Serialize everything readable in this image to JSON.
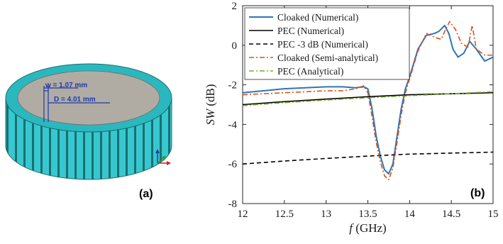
{
  "panel_a": {
    "label": "(a)",
    "dimension_w": "w = 1.07 mm",
    "dimension_d": "D = 4.01 mm",
    "colors": {
      "cylinder_body": "#37c8cf",
      "cylinder_stripe": "#1a6f73",
      "top_disk": "#b0aca4",
      "top_ring": "#2ab8be"
    },
    "triad_icon": "coordinate-triad-icon"
  },
  "panel_b": {
    "label": "(b)",
    "chart_data": {
      "type": "line",
      "xlabel_var": "f",
      "xlabel_unit": " (GHz)",
      "ylabel_var": "SW",
      "ylabel_unit": " (dB)",
      "xlim": [
        12,
        15
      ],
      "ylim": [
        -8,
        2
      ],
      "xticks": [
        "12",
        "12.5",
        "13",
        "13.5",
        "14",
        "14.5",
        "15"
      ],
      "xtick_values": [
        12,
        12.5,
        13,
        13.5,
        14,
        14.5,
        15
      ],
      "yticks": [
        "2",
        "0",
        "-2",
        "-4",
        "-6",
        "-8"
      ],
      "ytick_values": [
        2,
        0,
        -2,
        -4,
        -6,
        -8
      ],
      "legend_placement": "top-left",
      "series": [
        {
          "name": "Cloaked (Numerical)",
          "color": "#2e75b6",
          "dash": "solid",
          "x": [
            12.0,
            12.25,
            12.5,
            12.75,
            13.0,
            13.2,
            13.35,
            13.45,
            13.5,
            13.55,
            13.6,
            13.65,
            13.7,
            13.75,
            13.8,
            13.85,
            13.9,
            13.95,
            14.0,
            14.05,
            14.1,
            14.2,
            14.3,
            14.35,
            14.42,
            14.47,
            14.52,
            14.58,
            14.65,
            14.72,
            14.8,
            14.9,
            14.95,
            15.0
          ],
          "y": [
            -2.4,
            -2.3,
            -2.2,
            -2.15,
            -2.1,
            -2.1,
            -2.15,
            -2.1,
            -2.2,
            -3.2,
            -4.6,
            -5.6,
            -6.3,
            -6.5,
            -6.0,
            -4.6,
            -3.2,
            -2.2,
            -1.6,
            -0.9,
            -0.2,
            0.5,
            0.6,
            0.7,
            1.0,
            0.6,
            -0.2,
            -0.6,
            -0.4,
            0.2,
            -0.2,
            -0.8,
            -0.7,
            -0.6
          ]
        },
        {
          "name": "PEC (Numerical)",
          "color": "#000000",
          "dash": "solid",
          "x": [
            12.0,
            12.5,
            13.0,
            13.5,
            14.0,
            14.5,
            15.0
          ],
          "y": [
            -3.0,
            -2.85,
            -2.72,
            -2.6,
            -2.5,
            -2.45,
            -2.4
          ]
        },
        {
          "name": "PEC -3 dB (Numerical)",
          "color": "#000000",
          "dash": "dashed",
          "x": [
            12.0,
            12.5,
            13.0,
            13.5,
            14.0,
            14.5,
            15.0
          ],
          "y": [
            -6.0,
            -5.85,
            -5.72,
            -5.6,
            -5.5,
            -5.45,
            -5.4
          ]
        },
        {
          "name": "Cloaked (Semi-analytical)",
          "color": "#d95319",
          "dash": "dashdot",
          "x": [
            12.0,
            12.25,
            12.5,
            12.75,
            13.0,
            13.2,
            13.35,
            13.45,
            13.5,
            13.55,
            13.6,
            13.65,
            13.7,
            13.75,
            13.8,
            13.85,
            13.9,
            13.95,
            14.0,
            14.05,
            14.1,
            14.2,
            14.3,
            14.38,
            14.42,
            14.48,
            14.55,
            14.62,
            14.7,
            14.75,
            14.8,
            14.9,
            14.95,
            15.0
          ],
          "y": [
            -2.5,
            -2.45,
            -2.4,
            -2.35,
            -2.3,
            -2.3,
            -2.2,
            -2.05,
            -2.4,
            -3.6,
            -4.9,
            -5.9,
            -6.6,
            -6.8,
            -6.2,
            -4.9,
            -3.5,
            -2.4,
            -1.7,
            -1.0,
            -0.3,
            0.6,
            0.4,
            0.3,
            0.7,
            1.2,
            0.8,
            0.1,
            -0.1,
            1.0,
            -0.2,
            -0.5,
            -0.5,
            -0.5
          ]
        },
        {
          "name": "PEC (Analytical)",
          "color": "#77ac30",
          "dash": "dashdot",
          "x": [
            12.0,
            12.5,
            13.0,
            13.5,
            14.0,
            14.5,
            15.0
          ],
          "y": [
            -3.05,
            -2.9,
            -2.77,
            -2.65,
            -2.55,
            -2.45,
            -2.35
          ]
        }
      ]
    }
  }
}
